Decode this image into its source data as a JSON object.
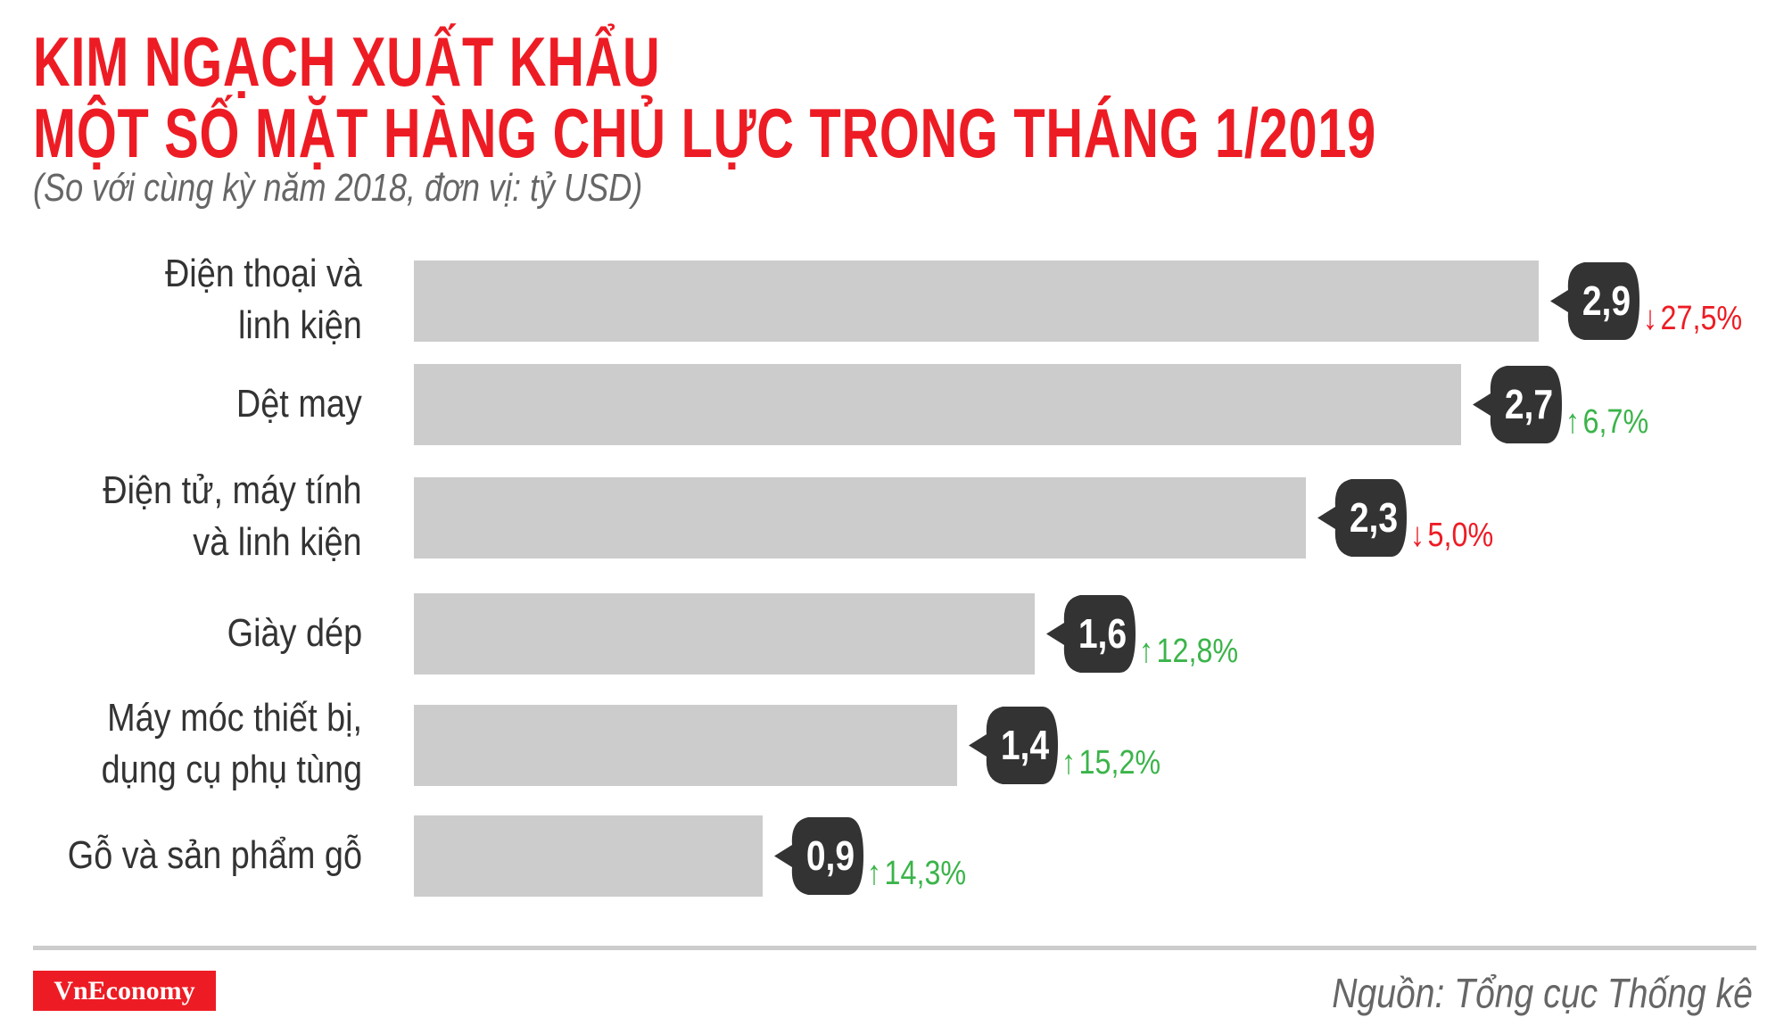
{
  "header": {
    "title_line1": "KIM NGẠCH XUẤT KHẨU",
    "title_line2": "MỘT SỐ MẶT HÀNG CHỦ LỰC TRONG THÁNG 1/2019",
    "subtitle": "(So với cùng kỳ năm 2018, đơn vị: tỷ USD)"
  },
  "rows": [
    {
      "label_line1": "Điện thoại và",
      "label_line2": "linh kiện",
      "value": "2,9",
      "change": "27,5%",
      "direction": "down"
    },
    {
      "label_line1": "Dệt may",
      "label_line2": "",
      "value": "2,7",
      "change": "6,7%",
      "direction": "up"
    },
    {
      "label_line1": "Điện tử, máy tính",
      "label_line2": "và linh kiện",
      "value": "2,3",
      "change": "5,0%",
      "direction": "down"
    },
    {
      "label_line1": "Giày dép",
      "label_line2": "",
      "value": "1,6",
      "change": "12,8%",
      "direction": "up"
    },
    {
      "label_line1": "Máy móc thiết bị,",
      "label_line2": "dụng cụ phụ tùng",
      "value": "1,4",
      "change": "15,2%",
      "direction": "up"
    },
    {
      "label_line1": "Gỗ và sản phẩm gỗ",
      "label_line2": "",
      "value": "0,9",
      "change": "14,3%",
      "direction": "up"
    }
  ],
  "icons": {
    "up": "↑",
    "down": "↓",
    "up_name": "arrow-up-icon",
    "down_name": "arrow-down-icon"
  },
  "colors": {
    "title": "#ed1c24",
    "bar": "#cdcccc",
    "badge": "#333333",
    "up": "#3bb44a",
    "down": "#ed1c24",
    "text": "#333333",
    "muted": "#666666"
  },
  "footer": {
    "logo": "VnEconomy",
    "source": "Nguồn: Tổng cục Thống kê"
  },
  "chart_data": {
    "type": "bar",
    "orientation": "horizontal",
    "title": "KIM NGẠCH XUẤT KHẨU MỘT SỐ MẶT HÀNG CHỦ LỰC TRONG THÁNG 1/2019",
    "subtitle": "(So với cùng kỳ năm 2018, đơn vị: tỷ USD)",
    "categories": [
      "Điện thoại và linh kiện",
      "Dệt may",
      "Điện tử, máy tính và linh kiện",
      "Giày dép",
      "Máy móc thiết bị, dụng cụ phụ tùng",
      "Gỗ và sản phẩm gỗ"
    ],
    "series": [
      {
        "name": "Kim ngạch (tỷ USD)",
        "values": [
          2.9,
          2.7,
          2.3,
          1.6,
          1.4,
          0.9
        ]
      },
      {
        "name": "So với cùng kỳ 2018 (%)",
        "values": [
          -27.5,
          6.7,
          -5.0,
          12.8,
          15.2,
          14.3
        ]
      }
    ],
    "xlabel": "",
    "ylabel": "",
    "grid": false,
    "legend": "none",
    "source": "Nguồn: Tổng cục Thống kê"
  }
}
